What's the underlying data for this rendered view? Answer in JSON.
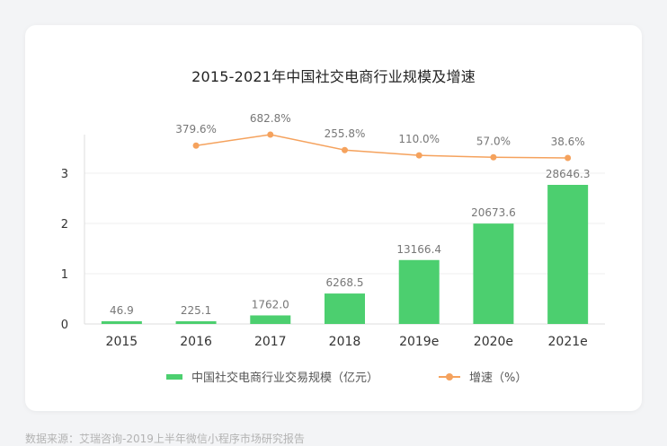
{
  "chart_data": {
    "type": "bar",
    "title": "2015-2021年中国社交电商行业规模及增速",
    "categories": [
      "2015",
      "2016",
      "2017",
      "2018",
      "2019e",
      "2020e",
      "2021e"
    ],
    "series": [
      {
        "name": "中国社交电商行业交易规模（亿元）",
        "type": "bar",
        "values": [
          46.9,
          225.1,
          1762.0,
          6268.5,
          13166.4,
          20673.6,
          28646.3
        ],
        "value_labels": [
          "46.9",
          "225.1",
          "1762.0",
          "6268.5",
          "13166.4",
          "20673.6",
          "28646.3"
        ],
        "color": "#4ccf6f"
      },
      {
        "name": "增速（%）",
        "type": "line",
        "values": [
          null,
          379.6,
          682.8,
          255.8,
          110.0,
          57.0,
          38.6
        ],
        "value_labels": [
          "",
          "379.6%",
          "682.8%",
          "255.8%",
          "110.0%",
          "57.0%",
          "38.6%"
        ],
        "color": "#f5a25d"
      }
    ],
    "y_ticks": [
      "0",
      "1",
      "2",
      "3"
    ],
    "grid": true,
    "legend_position": "bottom"
  },
  "source": "数据来源：艾瑞咨询-2019上半年微信小程序市场研究报告"
}
